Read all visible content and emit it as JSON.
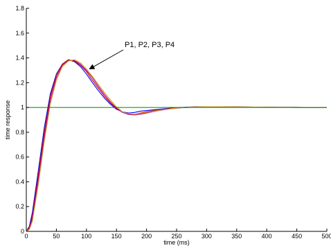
{
  "chart_data": {
    "type": "line",
    "title": "",
    "xlabel": "time (ms)",
    "ylabel": "time response",
    "xlim": [
      0,
      500
    ],
    "ylim": [
      0,
      1.8
    ],
    "x_ticks": [
      0,
      50,
      100,
      150,
      200,
      250,
      300,
      350,
      400,
      450,
      500
    ],
    "x_tick_labels": [
      "0",
      "50",
      "100",
      "150",
      "200",
      "250",
      "300",
      "350",
      "400",
      "450",
      "500"
    ],
    "y_ticks": [
      0,
      0.2,
      0.4,
      0.6,
      0.8,
      1,
      1.2,
      1.4,
      1.6,
      1.8
    ],
    "y_tick_labels": [
      "0",
      "0.2",
      "0.4",
      "0.6",
      "0.8",
      "1",
      "1.2",
      "1.4",
      "1.6",
      "1.8"
    ],
    "grid": false,
    "annotation": {
      "text": "P1, P2, P3, P4",
      "arrow_to": [
        105,
        1.31
      ]
    },
    "reference_line": {
      "y": 1,
      "color": "#008000"
    },
    "series": [
      {
        "color": "#0000ff",
        "x": [
          0,
          5,
          10,
          20,
          30,
          40,
          50,
          60,
          70,
          80,
          90,
          100,
          110,
          120,
          130,
          140,
          150,
          160,
          170,
          180,
          190,
          200,
          210,
          220,
          230,
          240,
          250,
          260,
          270,
          280,
          290,
          300,
          320,
          340,
          360,
          380,
          400,
          420,
          440,
          460,
          480,
          500
        ],
        "y": [
          0,
          0.04,
          0.15,
          0.49,
          0.84,
          1.11,
          1.27,
          1.35,
          1.385,
          1.37,
          1.33,
          1.27,
          1.2,
          1.135,
          1.075,
          1.025,
          0.985,
          0.965,
          0.955,
          0.96,
          0.97,
          0.975,
          0.98,
          0.985,
          0.99,
          0.995,
          0.998,
          1.0,
          1.003,
          1.005,
          1.006,
          1.006,
          1.006,
          1.005,
          1.004,
          1.003,
          1.002,
          1.001,
          1.001,
          1.0,
          1.0,
          1.0
        ]
      },
      {
        "color": "#cc0000",
        "x": [
          0,
          5,
          10,
          20,
          30,
          40,
          50,
          60,
          70,
          80,
          90,
          100,
          110,
          120,
          130,
          140,
          150,
          160,
          170,
          180,
          190,
          200,
          210,
          220,
          230,
          240,
          250,
          260,
          270,
          280,
          290,
          300,
          320,
          340,
          360,
          380,
          400,
          420,
          440,
          460,
          480,
          500
        ],
        "y": [
          0,
          0.03,
          0.12,
          0.45,
          0.8,
          1.09,
          1.26,
          1.35,
          1.385,
          1.375,
          1.34,
          1.29,
          1.22,
          1.155,
          1.09,
          1.035,
          0.99,
          0.962,
          0.948,
          0.945,
          0.955,
          0.965,
          0.973,
          0.98,
          0.986,
          0.992,
          0.996,
          0.999,
          1.002,
          1.004,
          1.005,
          1.006,
          1.006,
          1.005,
          1.004,
          1.003,
          1.002,
          1.001,
          1.001,
          1.0,
          1.0,
          1.0
        ]
      },
      {
        "color": "#aa00aa",
        "x": [
          0,
          5,
          10,
          20,
          30,
          40,
          50,
          60,
          70,
          80,
          90,
          100,
          110,
          120,
          130,
          140,
          150,
          160,
          170,
          180,
          190,
          200,
          210,
          220,
          230,
          240,
          250,
          260,
          270,
          280,
          290,
          300,
          320,
          340,
          360,
          380,
          400,
          420,
          440,
          460,
          480,
          500
        ],
        "y": [
          0,
          0.02,
          0.1,
          0.41,
          0.76,
          1.06,
          1.24,
          1.34,
          1.38,
          1.38,
          1.35,
          1.3,
          1.24,
          1.17,
          1.105,
          1.045,
          0.995,
          0.96,
          0.943,
          0.94,
          0.945,
          0.955,
          0.965,
          0.975,
          0.982,
          0.989,
          0.994,
          0.998,
          1.001,
          1.003,
          1.005,
          1.006,
          1.006,
          1.005,
          1.004,
          1.003,
          1.002,
          1.001,
          1.001,
          1.0,
          1.0,
          1.0
        ]
      },
      {
        "color": "#d4a017",
        "x": [
          0,
          5,
          10,
          20,
          30,
          40,
          50,
          60,
          70,
          80,
          90,
          100,
          110,
          120,
          130,
          140,
          150,
          160,
          170,
          180,
          190,
          200,
          210,
          220,
          230,
          240,
          250,
          260,
          270,
          280,
          290,
          300,
          320,
          340,
          360,
          380,
          400,
          420,
          440,
          460,
          480,
          500
        ],
        "y": [
          0,
          0.015,
          0.08,
          0.38,
          0.73,
          1.03,
          1.22,
          1.33,
          1.375,
          1.385,
          1.36,
          1.31,
          1.25,
          1.185,
          1.12,
          1.06,
          1.005,
          0.965,
          0.948,
          0.945,
          0.95,
          0.96,
          0.968,
          0.977,
          0.984,
          0.99,
          0.995,
          0.999,
          1.002,
          1.004,
          1.005,
          1.006,
          1.006,
          1.005,
          1.004,
          1.003,
          1.002,
          1.001,
          1.001,
          1.0,
          1.0,
          1.0
        ]
      }
    ]
  }
}
